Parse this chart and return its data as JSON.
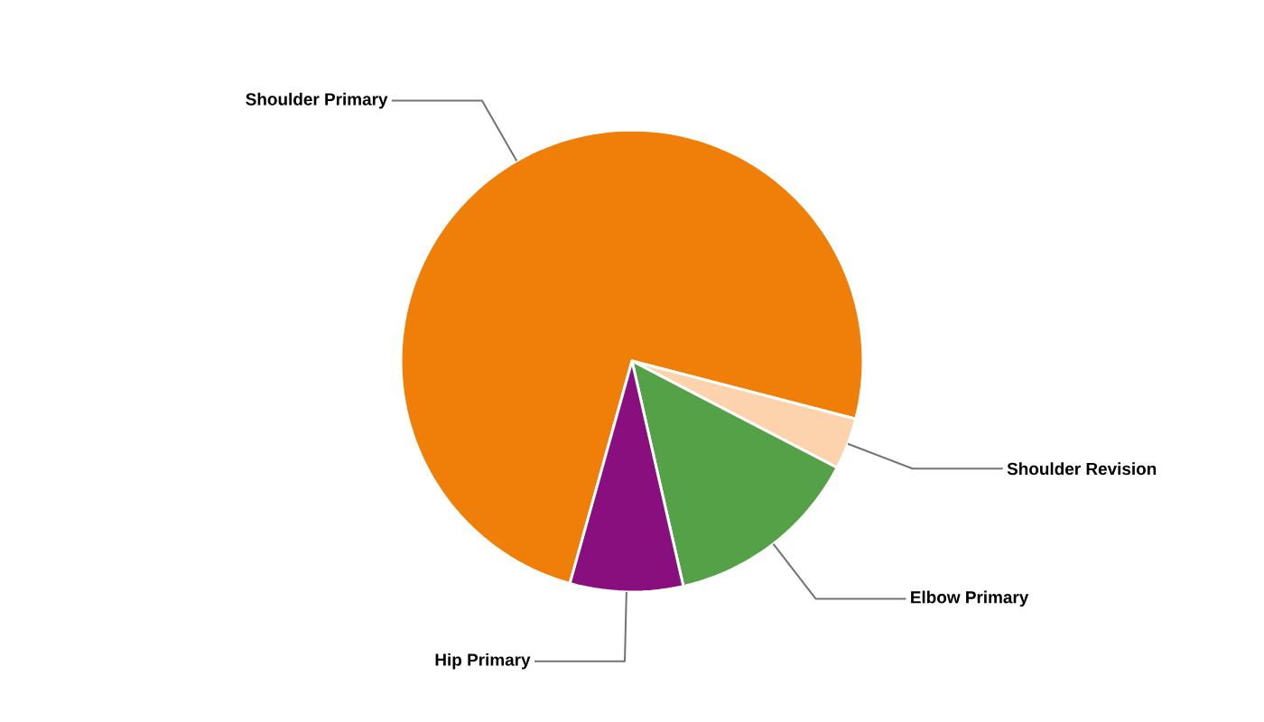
{
  "chart_data": {
    "type": "pie",
    "categories": [
      "Shoulder Primary",
      "Shoulder Revision",
      "Elbow Primary",
      "Hip Primary"
    ],
    "values": [
      74.7,
      3.6,
      13.8,
      7.9
    ],
    "colors": [
      "#f07f09",
      "#fcd3ac",
      "#54a147",
      "#8a0f7e"
    ]
  }
}
